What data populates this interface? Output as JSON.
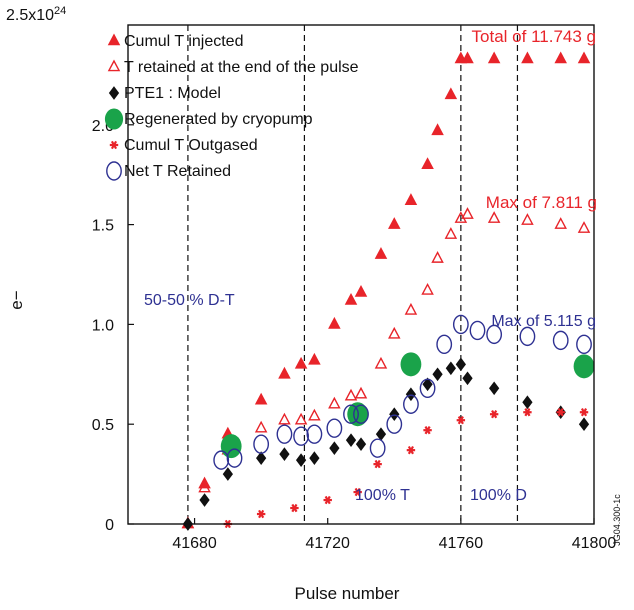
{
  "colors": {
    "red": "#e8242a",
    "blue": "#2e3192",
    "green": "#1aa34a",
    "black": "#111111"
  },
  "chart_data": {
    "type": "scatter",
    "title": "",
    "xlabel": "Pulse number",
    "ylabel": "e−",
    "y_top_label": "2.5x10",
    "y_top_exp": "24",
    "xlim": [
      41660,
      41800
    ],
    "ylim": [
      0,
      2.5
    ],
    "x_ticks": [
      "41680",
      "41720",
      "41760",
      "41800"
    ],
    "y_ticks": [
      "0",
      "0.5",
      "1.0",
      "1.5",
      "2.0"
    ],
    "dashed_lines_x": [
      41678,
      41713,
      41760,
      41777
    ],
    "legend_position": "top-left",
    "legend": [
      {
        "label": "Cumul T injected",
        "marker": "filled-triangle",
        "color": "red"
      },
      {
        "label": "T retained at the end of the pulse",
        "marker": "open-triangle",
        "color": "red"
      },
      {
        "label": "PTE1 : Model",
        "marker": "filled-diamond",
        "color": "black"
      },
      {
        "label": "Regenerated by cryopump",
        "marker": "filled-circle",
        "color": "green"
      },
      {
        "label": "Cumul T Outgased",
        "marker": "asterisk",
        "color": "red"
      },
      {
        "label": "Net T Retained",
        "marker": "open-circle",
        "color": "blue"
      }
    ],
    "annotations": {
      "total": "Total of 11.743 g",
      "max_retained": "Max of 7.811 g",
      "max_net": "Max of 5.115 g",
      "phase1": "50-50 % D-T",
      "phase2": "100% T",
      "phase3": "100% D",
      "side_id": "JG04.300-1c"
    },
    "series": [
      {
        "name": "Cumul T injected",
        "x": [
          41678,
          41683,
          41690,
          41700,
          41707,
          41712,
          41716,
          41722,
          41727,
          41730,
          41736,
          41740,
          41745,
          41750,
          41753,
          41757,
          41760,
          41762,
          41770,
          41780,
          41790,
          41797
        ],
        "y": [
          0.0,
          0.2,
          0.45,
          0.62,
          0.75,
          0.8,
          0.82,
          1.0,
          1.12,
          1.16,
          1.35,
          1.5,
          1.62,
          1.8,
          1.97,
          2.15,
          2.33,
          2.33,
          2.33,
          2.33,
          2.33,
          2.33
        ]
      },
      {
        "name": "T retained at the end of the pulse",
        "x": [
          41678,
          41683,
          41690,
          41700,
          41707,
          41712,
          41716,
          41722,
          41727,
          41730,
          41736,
          41740,
          41745,
          41750,
          41753,
          41757,
          41760,
          41762,
          41770,
          41780,
          41790,
          41797
        ],
        "y": [
          0.0,
          0.18,
          0.37,
          0.48,
          0.52,
          0.52,
          0.54,
          0.6,
          0.64,
          0.65,
          0.8,
          0.95,
          1.07,
          1.17,
          1.33,
          1.45,
          1.53,
          1.55,
          1.53,
          1.52,
          1.5,
          1.48
        ]
      },
      {
        "name": "PTE1 : Model",
        "x": [
          41678,
          41683,
          41690,
          41700,
          41707,
          41712,
          41716,
          41722,
          41727,
          41730,
          41736,
          41740,
          41745,
          41750,
          41753,
          41757,
          41760,
          41762,
          41770,
          41780,
          41790,
          41797
        ],
        "y": [
          0.0,
          0.12,
          0.25,
          0.33,
          0.35,
          0.32,
          0.33,
          0.38,
          0.42,
          0.4,
          0.45,
          0.55,
          0.65,
          0.7,
          0.75,
          0.78,
          0.8,
          0.73,
          0.68,
          0.61,
          0.56,
          0.5
        ]
      },
      {
        "name": "Regenerated by cryopump",
        "x": [
          41691,
          41729,
          41745,
          41797
        ],
        "y": [
          0.39,
          0.55,
          0.8,
          0.79
        ]
      },
      {
        "name": "Cumul T Outgased",
        "x": [
          41690,
          41700,
          41710,
          41720,
          41729,
          41735,
          41745,
          41750,
          41760,
          41770,
          41780,
          41790,
          41797
        ],
        "y": [
          0.0,
          0.05,
          0.08,
          0.12,
          0.16,
          0.3,
          0.37,
          0.47,
          0.52,
          0.55,
          0.56,
          0.56,
          0.56
        ]
      },
      {
        "name": "Net T Retained",
        "x": [
          41688,
          41692,
          41700,
          41707,
          41712,
          41716,
          41722,
          41727,
          41730,
          41735,
          41740,
          41745,
          41750,
          41755,
          41760,
          41765,
          41770,
          41780,
          41790,
          41797
        ],
        "y": [
          0.32,
          0.33,
          0.4,
          0.45,
          0.44,
          0.45,
          0.48,
          0.55,
          0.55,
          0.38,
          0.5,
          0.6,
          0.68,
          0.9,
          1.0,
          0.97,
          0.95,
          0.94,
          0.92,
          0.9
        ]
      }
    ]
  }
}
